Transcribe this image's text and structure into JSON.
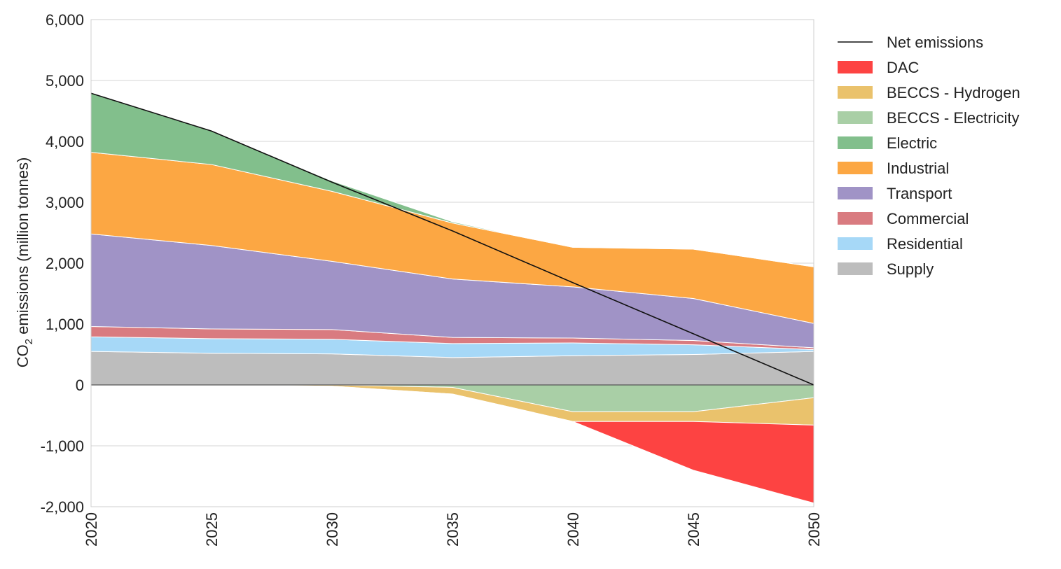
{
  "chart_data": {
    "type": "area",
    "title": "",
    "xlabel": "",
    "ylabel": "CO",
    "ylabel_sub": "2",
    "ylabel_rest": " emissions (million tonnes)",
    "x": [
      2020,
      2025,
      2030,
      2035,
      2040,
      2045,
      2050
    ],
    "x_tick_labels": [
      "2020",
      "2025",
      "2030",
      "2035",
      "2040",
      "2045",
      "2050"
    ],
    "ylim": [
      -2000,
      6000
    ],
    "y_ticks": [
      -2000,
      -1000,
      0,
      1000,
      2000,
      3000,
      4000,
      5000,
      6000
    ],
    "y_tick_labels": [
      "-2,000",
      "-1,000",
      "0",
      "1,000",
      "2,000",
      "3,000",
      "4,000",
      "5,000",
      "6,000"
    ],
    "grid": true,
    "legend_position": "right",
    "positive_series": [
      {
        "name": "Supply",
        "color": "#bdbdbd",
        "values": [
          550,
          520,
          510,
          450,
          480,
          500,
          550
        ]
      },
      {
        "name": "Residential",
        "color": "#a6d8f7",
        "values": [
          240,
          240,
          240,
          230,
          210,
          160,
          30
        ]
      },
      {
        "name": "Commercial",
        "color": "#d97b80",
        "values": [
          170,
          160,
          160,
          100,
          80,
          70,
          30
        ]
      },
      {
        "name": "Transport",
        "color": "#a093c6",
        "values": [
          1520,
          1370,
          1120,
          960,
          840,
          690,
          400
        ]
      },
      {
        "name": "Industrial",
        "color": "#fca743",
        "values": [
          1340,
          1330,
          1150,
          920,
          650,
          810,
          930
        ]
      },
      {
        "name": "Electric",
        "color": "#82bf8c",
        "values": [
          970,
          550,
          170,
          20,
          0,
          0,
          0
        ]
      }
    ],
    "negative_series": [
      {
        "name": "BECCS - Electricity",
        "color": "#a9cfa6",
        "values": [
          0,
          0,
          0,
          -40,
          -440,
          -440,
          -210
        ]
      },
      {
        "name": "BECCS - Hydrogen",
        "color": "#eac26c",
        "values": [
          0,
          0,
          -20,
          -110,
          -160,
          -160,
          -450
        ]
      },
      {
        "name": "DAC",
        "color": "#fd4342",
        "values": [
          0,
          0,
          0,
          0,
          0,
          -800,
          -1280
        ]
      }
    ],
    "net_emissions": {
      "name": "Net emissions",
      "color": "#111111",
      "values": [
        4790,
        4170,
        3330,
        2530,
        1680,
        840,
        0
      ]
    },
    "legend": [
      {
        "name": "Net emissions",
        "kind": "line",
        "color": "#111111"
      },
      {
        "name": "DAC",
        "kind": "patch",
        "color": "#fd4342"
      },
      {
        "name": "BECCS - Hydrogen",
        "kind": "patch",
        "color": "#eac26c"
      },
      {
        "name": "BECCS - Electricity",
        "kind": "patch",
        "color": "#a9cfa6"
      },
      {
        "name": "Electric",
        "kind": "patch",
        "color": "#82bf8c"
      },
      {
        "name": "Industrial",
        "kind": "patch",
        "color": "#fca743"
      },
      {
        "name": "Transport",
        "kind": "patch",
        "color": "#a093c6"
      },
      {
        "name": "Commercial",
        "kind": "patch",
        "color": "#d97b80"
      },
      {
        "name": "Residential",
        "kind": "patch",
        "color": "#a6d8f7"
      },
      {
        "name": "Supply",
        "kind": "patch",
        "color": "#bdbdbd"
      }
    ]
  }
}
